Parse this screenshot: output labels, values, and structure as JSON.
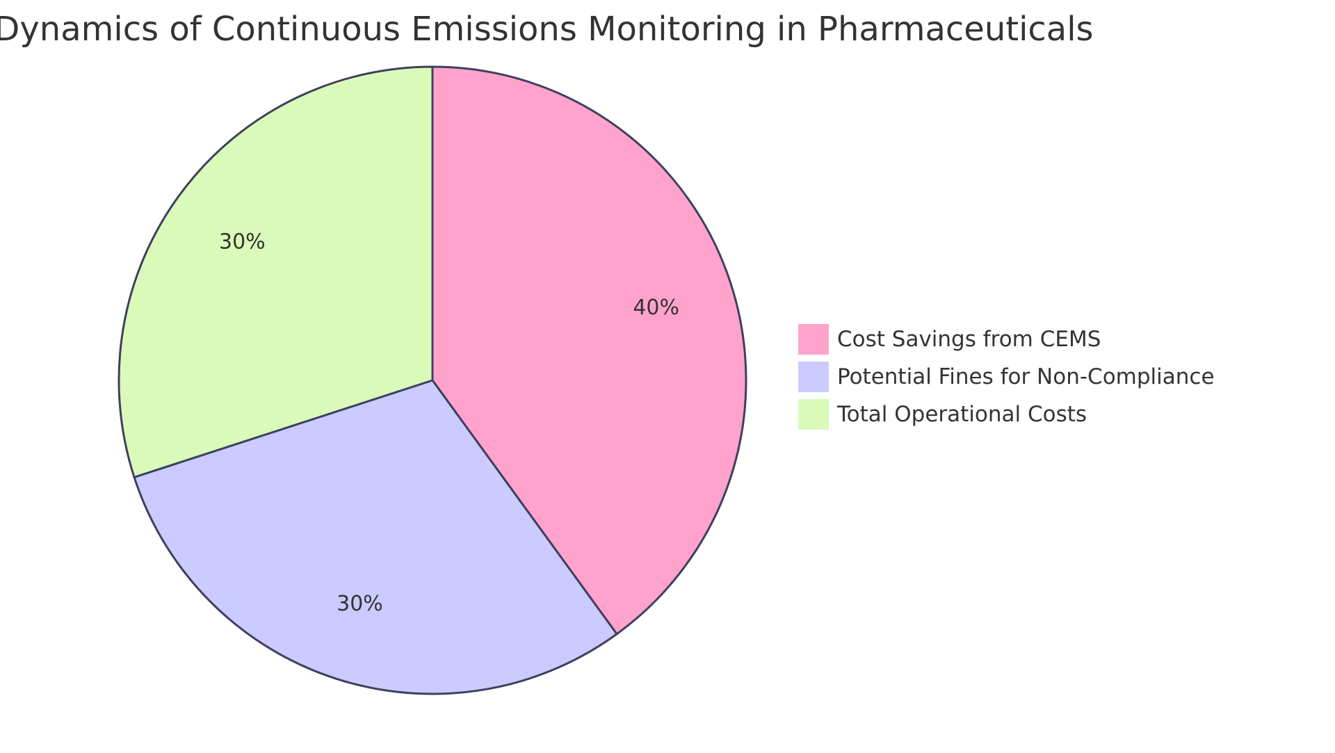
{
  "chart_data": {
    "type": "pie",
    "title": "The Financial Dynamics of Continuous Emissions Monitoring in Pharmaceuticals",
    "categories": [
      "Cost Savings from CEMS",
      "Potential Fines for Non-Compliance",
      "Total Operational Costs"
    ],
    "values": [
      40,
      30,
      30
    ],
    "value_labels": [
      "40%",
      "30%",
      "30%"
    ],
    "colors": [
      "#ffa3cd",
      "#cbcbff",
      "#dafab9"
    ],
    "stroke_color": "#3f3f5f",
    "legend_position": "right"
  }
}
